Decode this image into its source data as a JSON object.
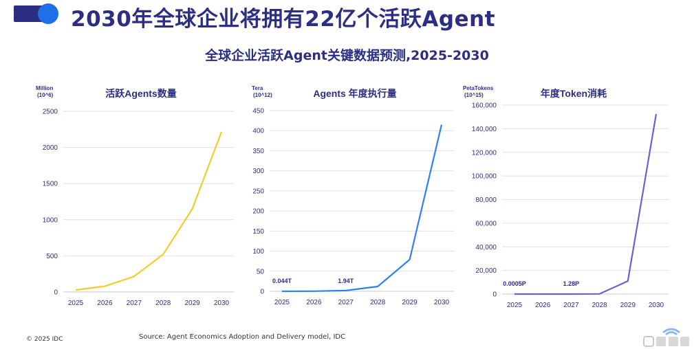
{
  "header": {
    "title": "2030年全球企业将拥有22亿个活跃Agent",
    "subtitle": "全球企业活跃Agent关键数据预测,2025-2030"
  },
  "footer": {
    "copyright": "© 2025 IDC",
    "source": "Source: Agent Economics Adoption and Delivery model, IDC"
  },
  "colors": {
    "navy": "#2b2e83",
    "logo_blue": "#1f6fe8",
    "yellow": "#f2cd2a",
    "blue": "#2d7ff9",
    "purple": "#6a5fd6",
    "grid": "#e0e0e0"
  },
  "chart_data": [
    {
      "type": "line",
      "title": "活跃Agents数量",
      "unit_label": "Million",
      "unit_sub": "(10^6)",
      "x": [
        "2025",
        "2026",
        "2027",
        "2028",
        "2029",
        "2030"
      ],
      "series": [
        {
          "values": [
            28,
            80,
            215,
            520,
            1150,
            2215
          ]
        }
      ],
      "yticks": [
        "0",
        "500",
        "1000",
        "1500",
        "2000",
        "2500"
      ],
      "ylim": [
        0,
        2500
      ],
      "annotations": [],
      "grid": true
    },
    {
      "type": "line",
      "title": "Agents 年度执行量",
      "unit_label": "Tera",
      "unit_sub": "(10^12)",
      "x": [
        "2025",
        "2026",
        "2027",
        "2028",
        "2029",
        "2030"
      ],
      "series": [
        {
          "values": [
            0.044,
            0.3,
            1.94,
            12,
            79,
            415
          ]
        }
      ],
      "yticks": [
        "0",
        "50",
        "100",
        "150",
        "200",
        "250",
        "300",
        "350",
        "400",
        "450"
      ],
      "ylim": [
        0,
        450
      ],
      "annotations": [
        {
          "index": 0,
          "text": "0.044T"
        },
        {
          "index": 2,
          "text": "1.94T"
        }
      ],
      "grid": true
    },
    {
      "type": "line",
      "title": "年度Token消耗",
      "unit_label": "PetaTokens",
      "unit_sub": "(10^15)",
      "x": [
        "2025",
        "2026",
        "2027",
        "2028",
        "2029",
        "2030"
      ],
      "series": [
        {
          "values": [
            0.0005,
            0.05,
            1.28,
            100,
            11000,
            152500
          ]
        }
      ],
      "yticks": [
        "0",
        "20,000",
        "40,000",
        "60,000",
        "80,000",
        "100,000",
        "120,000",
        "140,000",
        "160,000"
      ],
      "ylim": [
        0,
        160000
      ],
      "annotations": [
        {
          "index": 0,
          "text": "0.0005P"
        },
        {
          "index": 2,
          "text": "1.28P"
        }
      ],
      "grid": true
    }
  ]
}
